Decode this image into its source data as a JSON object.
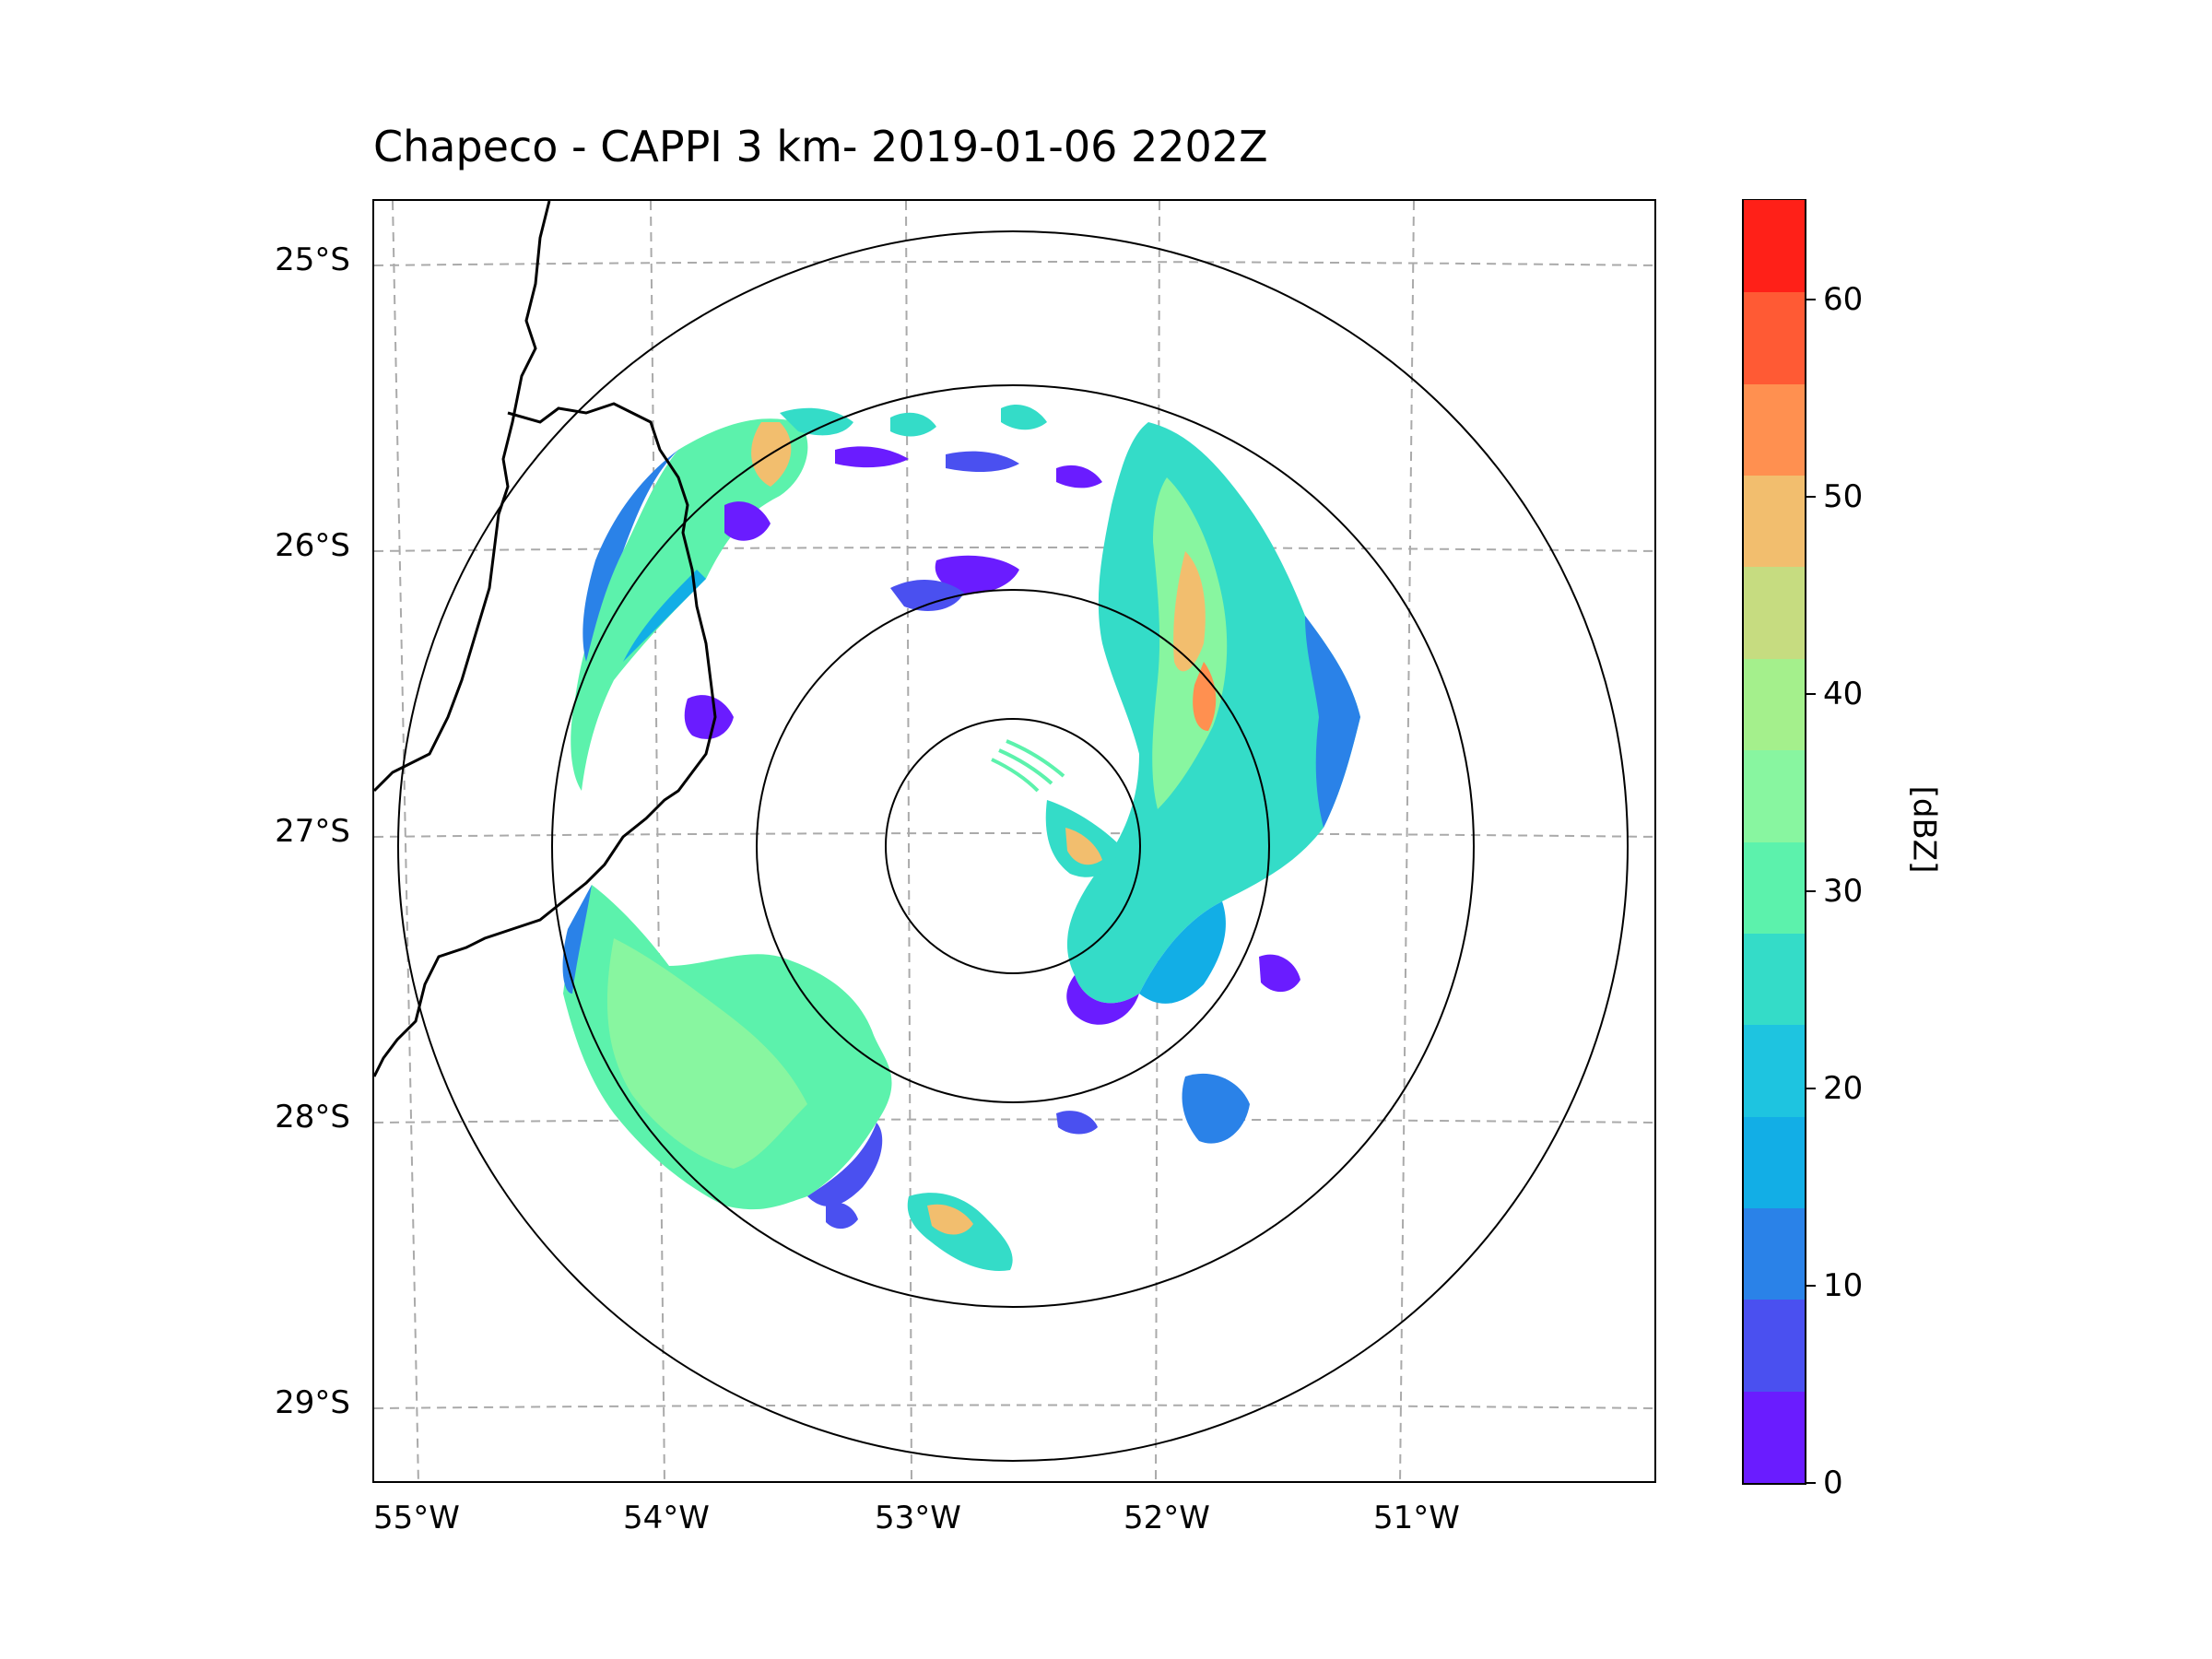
{
  "title": "Chapeco - CAPPI 3 km- 2019-01-06 2202Z",
  "map": {
    "lat_labels": [
      "25°S",
      "26°S",
      "27°S",
      "28°S",
      "29°S"
    ],
    "lon_labels": [
      "55°W",
      "54°W",
      "53°W",
      "52°W",
      "51°W"
    ],
    "radar_center": {
      "lat": -27.03,
      "lon": -52.6
    },
    "range_rings_label": "range rings",
    "border_color": "#000000",
    "grid_color": "#aaaaaa"
  },
  "colorbar": {
    "label": "[dBZ]",
    "ticks": [
      "0",
      "10",
      "20",
      "30",
      "40",
      "50",
      "60"
    ],
    "min": 0,
    "max": 65,
    "step": 5,
    "colors": [
      "#6a1cff",
      "#4a50f0",
      "#2a82e8",
      "#12aee6",
      "#1ec4e0",
      "#34dcc8",
      "#5cf2ac",
      "#88f6a0",
      "#a4f08c",
      "#c6dc80",
      "#f2be6e",
      "#ff9050",
      "#ff5a34",
      "#ff2018"
    ]
  }
}
